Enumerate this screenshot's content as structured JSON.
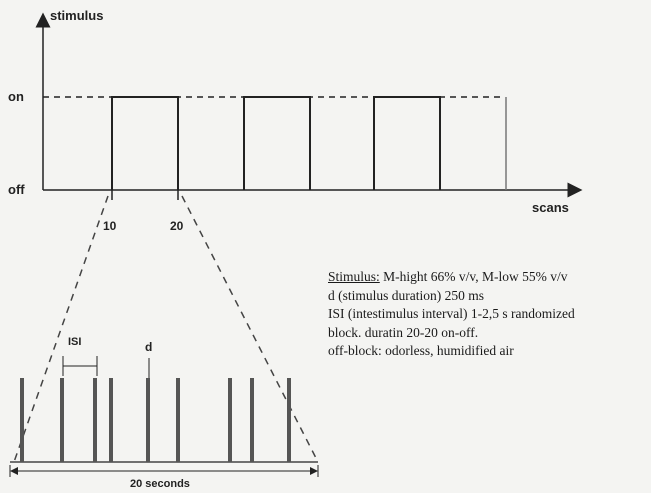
{
  "top_plot": {
    "y_axis_label": "stimulus",
    "x_axis_label": "scans",
    "level_on": "on",
    "level_off": "off",
    "tick_10": "10",
    "tick_20": "20"
  },
  "bottom_plot": {
    "isi_label": "ISI",
    "d_label": "d",
    "duration_label": "20 seconds"
  },
  "description": {
    "stimulus_heading": "Stimulus:",
    "stimulus_rest": "M-hight 66% v/v, M-low 55% v/v",
    "line2": "d (stimulus duration) 250 ms",
    "line3": "ISI (intestimulus interval) 1-2,5 s randomized",
    "line4": "block. duratin 20-20 on-off.",
    "line5": "off-block: odorless, humidified air"
  },
  "colors": {
    "line": "#222222",
    "bar": "#555555",
    "background": "#f4f4f2"
  }
}
